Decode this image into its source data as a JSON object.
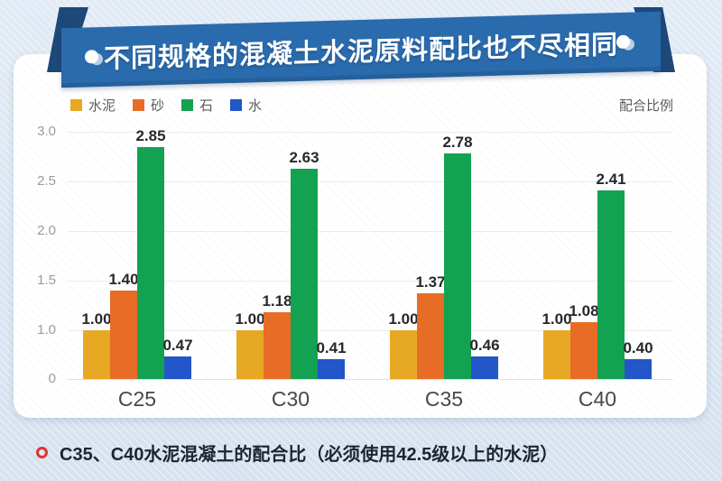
{
  "banner": {
    "title": "不同规格的混凝土水泥原料配比也不尽相同"
  },
  "legend": {
    "items": [
      {
        "label": "水泥",
        "color": "#e7a823"
      },
      {
        "label": "砂",
        "color": "#e76c26"
      },
      {
        "label": "石",
        "color": "#13a251"
      },
      {
        "label": "水",
        "color": "#2256c9"
      }
    ],
    "right_label": "配合比例"
  },
  "chart_data": {
    "type": "bar",
    "title": "不同规格的混凝土水泥原料配比也不尽相同",
    "categories": [
      "C25",
      "C30",
      "C35",
      "C40"
    ],
    "series": [
      {
        "name": "水泥",
        "color": "#e7a823",
        "values": [
          1.0,
          1.0,
          1.0,
          1.0
        ]
      },
      {
        "name": "砂",
        "color": "#e76c26",
        "values": [
          1.4,
          1.18,
          1.37,
          1.08
        ]
      },
      {
        "name": "石",
        "color": "#13a251",
        "values": [
          2.85,
          2.63,
          2.78,
          2.41
        ]
      },
      {
        "name": "水",
        "color": "#2256c9",
        "values": [
          0.47,
          0.41,
          0.46,
          0.4
        ]
      }
    ],
    "ytick_values": [
      3.0,
      2.5,
      2.0,
      1.5,
      1.0,
      0
    ],
    "ytick_labels": [
      "3.0",
      "2.5",
      "2.0",
      "1.5",
      "1.0",
      "0"
    ],
    "ylim": [
      0,
      3.0
    ],
    "grid": true,
    "legend_position": "top-left",
    "unit_note": "配合比例"
  },
  "caption": {
    "text": "C35、C40水泥混凝土的配合比（必须使用42.5级以上的水泥）"
  }
}
